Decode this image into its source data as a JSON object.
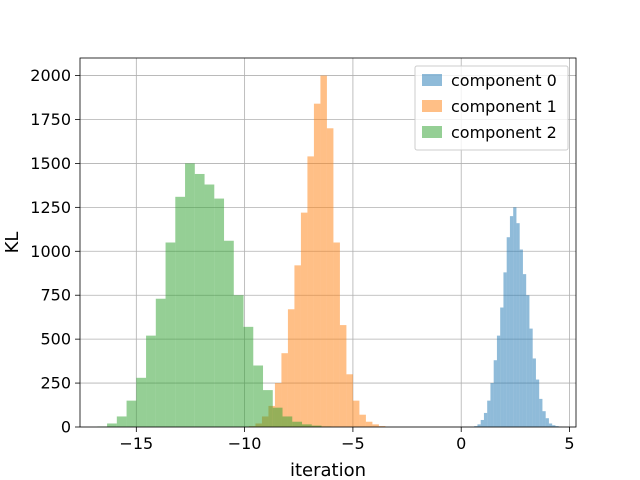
{
  "chart_data": {
    "type": "bar",
    "title": "",
    "xlabel": "iteration",
    "ylabel": "KL",
    "xlim": [
      -17.6,
      5.3
    ],
    "ylim": [
      0,
      2100
    ],
    "xticks": [
      -15,
      -10,
      -5,
      0,
      5
    ],
    "xtick_labels": [
      "−15",
      "−10",
      "−5",
      "0",
      "5"
    ],
    "yticks": [
      0,
      250,
      500,
      750,
      1000,
      1250,
      1500,
      1750,
      2000
    ],
    "ytick_labels": [
      "0",
      "250",
      "500",
      "750",
      "1000",
      "1250",
      "1500",
      "1750",
      "2000"
    ],
    "grid": true,
    "legend_position": "top-right",
    "legend_entries": [
      "component 0",
      "component 1",
      "component 2"
    ],
    "series": [
      {
        "name": "component 0",
        "color": "#1f77b4",
        "alpha": 0.5,
        "bin_start": 0.6,
        "bin_width": 0.15,
        "counts": [
          5,
          15,
          40,
          80,
          150,
          250,
          380,
          520,
          680,
          880,
          1080,
          1200,
          1250,
          1160,
          1010,
          870,
          750,
          560,
          390,
          270,
          160,
          90,
          50,
          20,
          10,
          5,
          2
        ]
      },
      {
        "name": "component 1",
        "color": "#ff7f0e",
        "alpha": 0.5,
        "bin_start": -9.8,
        "bin_width": 0.3,
        "counts": [
          5,
          20,
          60,
          120,
          250,
          420,
          670,
          920,
          1220,
          1540,
          1840,
          2000,
          1700,
          1050,
          580,
          300,
          150,
          70,
          30,
          15,
          5
        ]
      },
      {
        "name": "component 2",
        "color": "#2ca02c",
        "alpha": 0.5,
        "bin_start": -16.8,
        "bin_width": 0.45,
        "counts": [
          3,
          20,
          60,
          150,
          280,
          520,
          730,
          1050,
          1310,
          1500,
          1440,
          1380,
          1300,
          1060,
          750,
          570,
          350,
          210,
          110,
          60,
          30,
          15,
          8,
          3
        ]
      }
    ]
  }
}
